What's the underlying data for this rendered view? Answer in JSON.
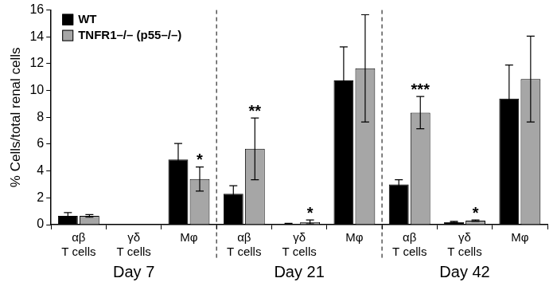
{
  "chart_data": {
    "type": "bar",
    "y_label": "% Cells/total renal cells",
    "groups": [
      {
        "name": "Day 7",
        "categories": [
          "αβ T cells",
          "γδ T cells",
          "Mφ"
        ]
      },
      {
        "name": "Day 21",
        "categories": [
          "αβ T cells",
          "γδ T cells",
          "Mφ"
        ]
      },
      {
        "name": "Day 42",
        "categories": [
          "αβ T cells",
          "γδ T cells",
          "Mφ"
        ]
      }
    ],
    "series": [
      {
        "name": "WT",
        "color": "#000000",
        "values": [
          0.65,
          0,
          4.85,
          2.3,
          0.05,
          10.75,
          3.0,
          0.2,
          9.4
        ],
        "errors": [
          0.25,
          0,
          1.2,
          0.6,
          0.05,
          2.5,
          0.35,
          0.05,
          2.5
        ]
      },
      {
        "name": "TNFR1–/– (p55–/–)",
        "color": "#a6a6a6",
        "values": [
          0.65,
          0,
          3.4,
          5.65,
          0.2,
          11.65,
          8.35,
          0.3,
          10.85
        ],
        "errors": [
          0.1,
          0,
          0.9,
          2.3,
          0.15,
          4.0,
          1.2,
          0.05,
          3.2
        ]
      }
    ],
    "annotations": [
      {
        "text": "*",
        "group": "Day 7",
        "category": "Mφ",
        "series": "TNFR1–/– (p55–/–)"
      },
      {
        "text": "**",
        "group": "Day 21",
        "category": "αβ T cells",
        "series": "TNFR1–/– (p55–/–)"
      },
      {
        "text": "*",
        "group": "Day 21",
        "category": "γδ T cells",
        "series": "TNFR1–/– (p55–/–)"
      },
      {
        "text": "***",
        "group": "Day 42",
        "category": "αβ T cells",
        "series": "TNFR1–/– (p55–/–)"
      },
      {
        "text": "*",
        "group": "Day 42",
        "category": "γδ T cells",
        "series": "TNFR1–/– (p55–/–)"
      }
    ],
    "ylim": [
      0,
      16
    ],
    "yticks": [
      0,
      2,
      4,
      6,
      8,
      10,
      12,
      14,
      16
    ],
    "grid": false,
    "legend": "upper left"
  }
}
